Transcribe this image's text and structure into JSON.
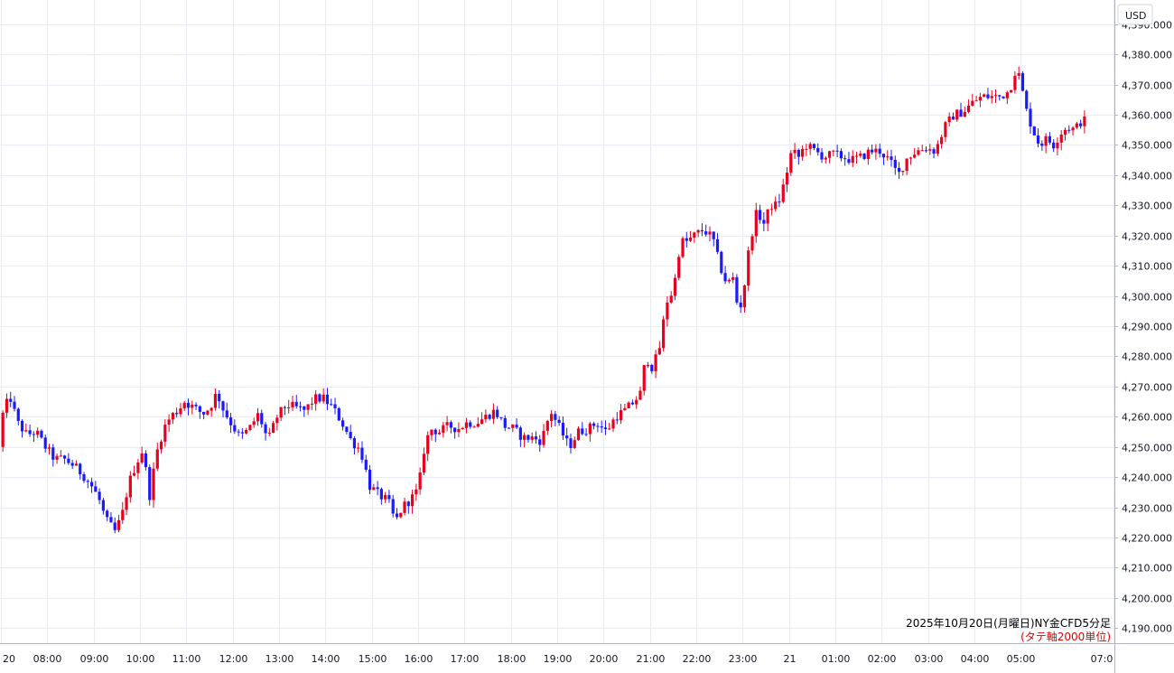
{
  "chart_data": {
    "type": "candlestick",
    "currency_label": "USD",
    "annotation": {
      "title": "2025年10月20日(月曜日)NY金CFD5分足",
      "note": "(タテ軸2000単位)"
    },
    "y_axis": {
      "ylim": [
        4185,
        4398
      ],
      "ticks": [
        "4,390.000",
        "4,380.000",
        "4,370.000",
        "4,360.000",
        "4,350.000",
        "4,340.000",
        "4,330.000",
        "4,320.000",
        "4,310.000",
        "4,300.000",
        "4,290.000",
        "4,280.000",
        "4,270.000",
        "4,260.000",
        "4,250.000",
        "4,240.000",
        "4,230.000",
        "4,220.000",
        "4,210.000",
        "4,200.000",
        "4,190.000"
      ],
      "tick_values": [
        4390,
        4380,
        4370,
        4360,
        4350,
        4340,
        4330,
        4320,
        4310,
        4300,
        4290,
        4280,
        4270,
        4260,
        4250,
        4240,
        4230,
        4220,
        4210,
        4200,
        4190
      ]
    },
    "x_axis": {
      "ticks": [
        "20",
        "08:00",
        "09:00",
        "10:00",
        "11:00",
        "12:00",
        "13:00",
        "14:00",
        "15:00",
        "16:00",
        "17:00",
        "18:00",
        "19:00",
        "20:00",
        "21:00",
        "22:00",
        "23:00",
        "21",
        "01:00",
        "02:00",
        "03:00",
        "04:00",
        "05:00",
        "07:0"
      ],
      "tick_hours": [
        7,
        8,
        9,
        10,
        11,
        12,
        13,
        14,
        15,
        16,
        17,
        18,
        19,
        20,
        21,
        22,
        23,
        24,
        25,
        26,
        27,
        28,
        29,
        31
      ],
      "hour_span": [
        6.98,
        31.02
      ]
    },
    "colors": {
      "up": "#e8001c",
      "down": "#1a1aff",
      "grid": "#e8ecf2"
    },
    "path_points": [
      [
        7.0,
        4250
      ],
      [
        7.1,
        4263
      ],
      [
        7.25,
        4266
      ],
      [
        7.4,
        4258
      ],
      [
        7.6,
        4254
      ],
      [
        7.8,
        4255
      ],
      [
        8.0,
        4250
      ],
      [
        8.2,
        4246
      ],
      [
        8.4,
        4246
      ],
      [
        8.6,
        4244
      ],
      [
        8.8,
        4241
      ],
      [
        9.0,
        4237
      ],
      [
        9.15,
        4233
      ],
      [
        9.3,
        4226
      ],
      [
        9.5,
        4222
      ],
      [
        9.65,
        4227
      ],
      [
        9.8,
        4238
      ],
      [
        9.95,
        4244
      ],
      [
        10.1,
        4249
      ],
      [
        10.25,
        4234
      ],
      [
        10.4,
        4248
      ],
      [
        10.55,
        4256
      ],
      [
        10.7,
        4260
      ],
      [
        10.85,
        4262
      ],
      [
        11.0,
        4265
      ],
      [
        11.2,
        4263
      ],
      [
        11.4,
        4261
      ],
      [
        11.55,
        4263
      ],
      [
        11.7,
        4268
      ],
      [
        11.85,
        4262
      ],
      [
        12.0,
        4258
      ],
      [
        12.2,
        4253
      ],
      [
        12.4,
        4256
      ],
      [
        12.6,
        4261
      ],
      [
        12.8,
        4252
      ],
      [
        13.0,
        4260
      ],
      [
        13.2,
        4264
      ],
      [
        13.4,
        4263
      ],
      [
        13.6,
        4262
      ],
      [
        13.8,
        4266
      ],
      [
        14.0,
        4266
      ],
      [
        14.2,
        4263
      ],
      [
        14.4,
        4258
      ],
      [
        14.6,
        4252
      ],
      [
        14.8,
        4249
      ],
      [
        15.0,
        4237
      ],
      [
        15.2,
        4234
      ],
      [
        15.4,
        4232
      ],
      [
        15.55,
        4225
      ],
      [
        15.7,
        4230
      ],
      [
        15.9,
        4233
      ],
      [
        16.05,
        4236
      ],
      [
        16.15,
        4248
      ],
      [
        16.3,
        4256
      ],
      [
        16.5,
        4255
      ],
      [
        16.7,
        4257
      ],
      [
        16.9,
        4256
      ],
      [
        17.1,
        4258
      ],
      [
        17.3,
        4258
      ],
      [
        17.5,
        4260
      ],
      [
        17.7,
        4262
      ],
      [
        17.9,
        4257
      ],
      [
        18.1,
        4256
      ],
      [
        18.3,
        4253
      ],
      [
        18.5,
        4253
      ],
      [
        18.7,
        4252
      ],
      [
        18.9,
        4262
      ],
      [
        19.1,
        4256
      ],
      [
        19.3,
        4250
      ],
      [
        19.5,
        4255
      ],
      [
        19.7,
        4256
      ],
      [
        19.9,
        4258
      ],
      [
        20.1,
        4255
      ],
      [
        20.3,
        4260
      ],
      [
        20.5,
        4262
      ],
      [
        20.7,
        4265
      ],
      [
        20.85,
        4268
      ],
      [
        20.95,
        4280
      ],
      [
        21.1,
        4276
      ],
      [
        21.25,
        4283
      ],
      [
        21.4,
        4298
      ],
      [
        21.55,
        4302
      ],
      [
        21.7,
        4318
      ],
      [
        21.85,
        4318
      ],
      [
        22.0,
        4320
      ],
      [
        22.2,
        4322
      ],
      [
        22.4,
        4319
      ],
      [
        22.55,
        4310
      ],
      [
        22.7,
        4304
      ],
      [
        22.85,
        4306
      ],
      [
        22.95,
        4294
      ],
      [
        23.05,
        4300
      ],
      [
        23.2,
        4318
      ],
      [
        23.35,
        4328
      ],
      [
        23.5,
        4324
      ],
      [
        23.65,
        4330
      ],
      [
        23.8,
        4330
      ],
      [
        23.95,
        4338
      ],
      [
        24.1,
        4348
      ],
      [
        24.25,
        4346
      ],
      [
        24.4,
        4350
      ],
      [
        24.6,
        4348
      ],
      [
        24.8,
        4346
      ],
      [
        25.0,
        4347
      ],
      [
        25.2,
        4346
      ],
      [
        25.4,
        4345
      ],
      [
        25.6,
        4346
      ],
      [
        25.8,
        4348
      ],
      [
        26.0,
        4348
      ],
      [
        26.2,
        4345
      ],
      [
        26.4,
        4340
      ],
      [
        26.6,
        4346
      ],
      [
        26.8,
        4348
      ],
      [
        27.0,
        4349
      ],
      [
        27.2,
        4348
      ],
      [
        27.4,
        4356
      ],
      [
        27.6,
        4360
      ],
      [
        27.8,
        4361
      ],
      [
        28.0,
        4364
      ],
      [
        28.2,
        4366
      ],
      [
        28.4,
        4366
      ],
      [
        28.6,
        4366
      ],
      [
        28.8,
        4368
      ],
      [
        28.95,
        4376
      ],
      [
        29.05,
        4370
      ],
      [
        29.15,
        4362
      ],
      [
        29.3,
        4355
      ],
      [
        29.45,
        4350
      ],
      [
        29.6,
        4352
      ],
      [
        29.75,
        4350
      ],
      [
        29.9,
        4354
      ],
      [
        30.05,
        4356
      ],
      [
        30.2,
        4355
      ],
      [
        30.35,
        4358
      ]
    ]
  }
}
